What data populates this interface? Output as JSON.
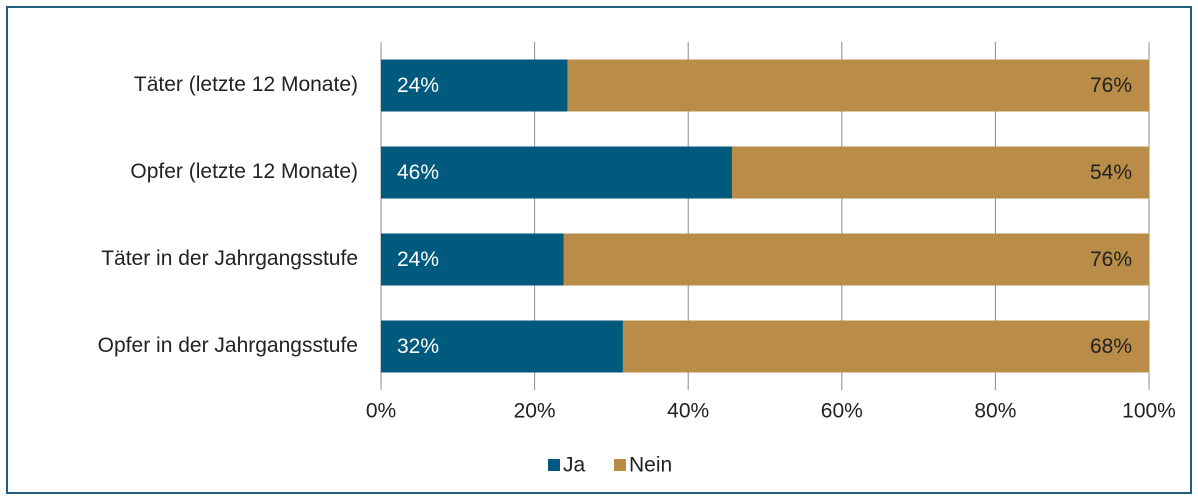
{
  "chart_data": {
    "type": "stacked-barh",
    "categories": [
      "Täter (letzte 12 Monate)",
      "Opfer (letzte 12 Monate)",
      "Täter in der Jahrgangsstufe",
      "Opfer in der Jahrgangsstufe"
    ],
    "series": [
      {
        "name": "Ja",
        "color": "#005a7e",
        "values": [
          24.3,
          45.7,
          23.8,
          31.5
        ],
        "value_labels": [
          "24%",
          "46%",
          "24%",
          "32%"
        ]
      },
      {
        "name": "Nein",
        "color": "#b98c47",
        "values": [
          75.7,
          54.3,
          76.2,
          68.5
        ],
        "value_labels": [
          "76%",
          "54%",
          "76%",
          "68%"
        ]
      }
    ],
    "xlim": [
      0,
      100
    ],
    "xticks": [
      {
        "value": 0,
        "label": "0%"
      },
      {
        "value": 20,
        "label": "20%"
      },
      {
        "value": 40,
        "label": "40%"
      },
      {
        "value": 60,
        "label": "60%"
      },
      {
        "value": 80,
        "label": "80%"
      },
      {
        "value": 100,
        "label": "100%"
      }
    ],
    "grid": true,
    "legend": "bottom"
  }
}
